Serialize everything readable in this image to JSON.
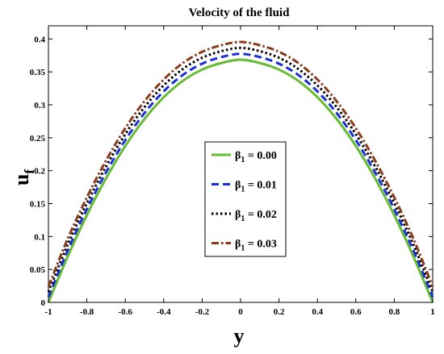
{
  "chart_data": {
    "type": "line",
    "title": "Velocity of the fluid",
    "xlabel": "y",
    "ylabel": "u",
    "ylabel_sub": "f",
    "xlim": [
      -1,
      1
    ],
    "ylim": [
      0,
      0.42
    ],
    "xticks": [
      "-1",
      "-0.8",
      "-0.6",
      "-0.4",
      "-0.2",
      "0",
      "0.2",
      "0.4",
      "0.6",
      "0.8",
      "1"
    ],
    "xtick_values": [
      -1,
      -0.8,
      -0.6,
      -0.4,
      -0.2,
      0,
      0.2,
      0.4,
      0.6,
      0.8,
      1
    ],
    "yticks": [
      "0",
      "0.05",
      "0.1",
      "0.15",
      "0.2",
      "0.25",
      "0.3",
      "0.35",
      "0.4"
    ],
    "ytick_values": [
      0,
      0.05,
      0.1,
      0.15,
      0.2,
      0.25,
      0.3,
      0.35,
      0.4
    ],
    "grid": false,
    "legend_position": "center-right",
    "x": [
      -1,
      -0.9,
      -0.8,
      -0.7,
      -0.6,
      -0.5,
      -0.4,
      -0.3,
      -0.2,
      -0.1,
      0,
      0.1,
      0.2,
      0.3,
      0.4,
      0.5,
      0.6,
      0.7,
      0.8,
      0.9,
      1
    ],
    "series": [
      {
        "legend_symbol": "β",
        "legend_sub": "1",
        "legend_value": " = 0.00",
        "color": "#66bb33",
        "dash": "solid",
        "values": [
          0,
          0.0695,
          0.1325,
          0.1885,
          0.2375,
          0.2785,
          0.3115,
          0.3365,
          0.3535,
          0.3635,
          0.3685,
          0.3635,
          0.3535,
          0.3365,
          0.3115,
          0.2785,
          0.2375,
          0.1885,
          0.1325,
          0.0695,
          0
        ]
      },
      {
        "legend_symbol": "β",
        "legend_sub": "1",
        "legend_value": " = 0.01",
        "color": "#1a2fd6",
        "dash": "dashed",
        "values": [
          0.008,
          0.0785,
          0.1415,
          0.1975,
          0.2465,
          0.2875,
          0.3205,
          0.3455,
          0.3625,
          0.3725,
          0.3775,
          0.3725,
          0.3625,
          0.3455,
          0.3205,
          0.2875,
          0.2465,
          0.1975,
          0.1415,
          0.0785,
          0.008
        ]
      },
      {
        "legend_symbol": "β",
        "legend_sub": "1",
        "legend_value": " = 0.02",
        "color": "#000000",
        "dash": "dotted",
        "values": [
          0.016,
          0.0875,
          0.1505,
          0.2065,
          0.2555,
          0.2965,
          0.3295,
          0.3545,
          0.3715,
          0.3815,
          0.3865,
          0.3815,
          0.3715,
          0.3545,
          0.3295,
          0.2965,
          0.2555,
          0.2065,
          0.1505,
          0.0875,
          0.016
        ]
      },
      {
        "legend_symbol": "β",
        "legend_sub": "1",
        "legend_value": " = 0.03",
        "color": "#8b3a1a",
        "dash": "dashdot",
        "values": [
          0.024,
          0.0965,
          0.1595,
          0.2155,
          0.2645,
          0.3055,
          0.3385,
          0.3635,
          0.3805,
          0.3905,
          0.3955,
          0.3905,
          0.3805,
          0.3635,
          0.3385,
          0.3055,
          0.2645,
          0.2155,
          0.1595,
          0.0965,
          0.024
        ]
      }
    ]
  }
}
